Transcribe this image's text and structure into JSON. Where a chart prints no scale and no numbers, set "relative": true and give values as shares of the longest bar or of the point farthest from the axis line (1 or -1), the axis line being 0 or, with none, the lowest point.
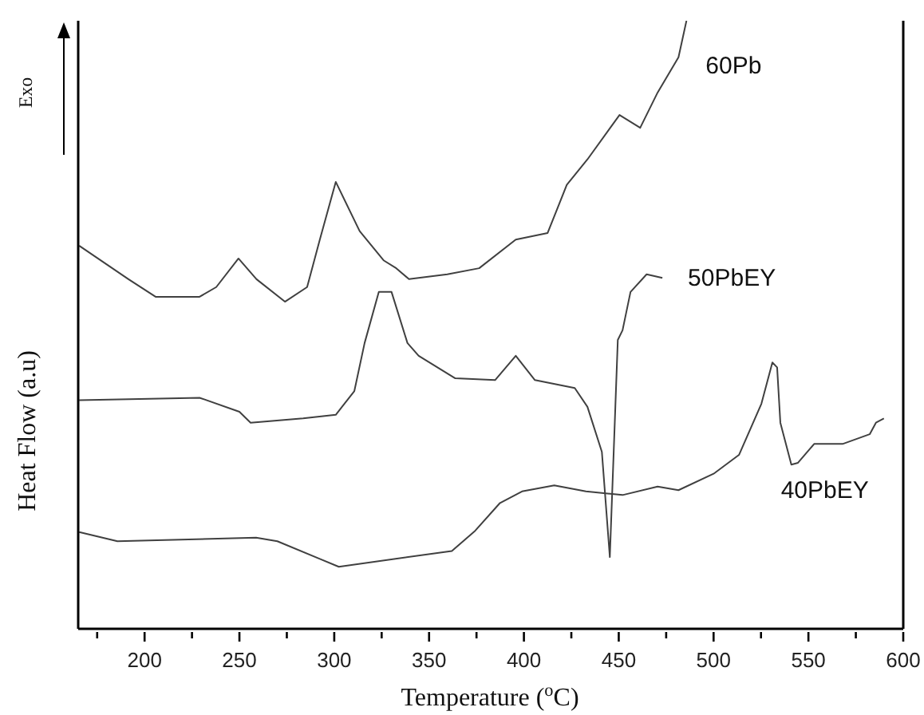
{
  "chart_data": {
    "type": "line",
    "relative": true,
    "xlabel": "Temperature ($^{o}$C)",
    "ylabel": "Heat Flow (a.u)",
    "annotations": [
      "Exo"
    ],
    "xlim": [
      165,
      600
    ],
    "xticks": [
      {
        "value": 175,
        "label": null
      },
      200,
      {
        "value": 225,
        "label": null
      },
      250,
      {
        "value": 275,
        "label": null
      },
      300,
      {
        "value": 325,
        "label": null
      },
      350,
      {
        "value": 375,
        "label": null
      },
      400,
      {
        "value": 425,
        "label": null
      },
      450,
      {
        "value": 475,
        "label": null
      },
      500,
      {
        "value": 525,
        "label": null
      },
      550,
      {
        "value": 575,
        "label": null
      },
      600
    ],
    "series": [
      {
        "name": "60Pb",
        "color": "#404040",
        "x": [
          165.5,
          191.5,
          205.8,
          229,
          237.8,
          249.5,
          259,
          274,
          285.7,
          292.4,
          300.8,
          313.4,
          326,
          332.7,
          339.4,
          359.6,
          376.4,
          395.7,
          412.5,
          422.6,
          433.5,
          450.4,
          461.3,
          470.5,
          481.5,
          485.7
        ],
        "values": [
          0.63,
          0.575,
          0.546,
          0.546,
          0.562,
          0.609,
          0.575,
          0.538,
          0.562,
          0.64,
          0.735,
          0.654,
          0.606,
          0.593,
          0.575,
          0.583,
          0.593,
          0.64,
          0.651,
          0.73,
          0.772,
          0.845,
          0.824,
          0.882,
          0.94,
          1
        ]
      },
      {
        "name": "50PbEY",
        "color": "#404040",
        "x": [
          165.5,
          229,
          250,
          255.9,
          283.6,
          300.8,
          310.6,
          316,
          323.5,
          330.2,
          338.6,
          344.5,
          363.8,
          384.8,
          395.7,
          405.8,
          426.8,
          433.5,
          441.1,
          445.3,
          449.5,
          452,
          456.2,
          464.7,
          473
        ],
        "values": [
          0.376,
          0.38,
          0.357,
          0.339,
          0.346,
          0.352,
          0.391,
          0.47,
          0.554,
          0.554,
          0.47,
          0.449,
          0.412,
          0.409,
          0.449,
          0.409,
          0.396,
          0.365,
          0.291,
          0.118,
          0.475,
          0.491,
          0.554,
          0.583,
          0.577
        ]
      },
      {
        "name": "40PbEY",
        "color": "#404040",
        "x": [
          165.5,
          185.7,
          258.8,
          270,
          292.4,
          302.4,
          362,
          373.9,
          387.4,
          399,
          416,
          432.7,
          452,
          470.5,
          481.5,
          500,
          513.4,
          525.2,
          531,
          533.5,
          535.2,
          541,
          544.5,
          553,
          568,
          582.3,
          585.6,
          589.8
        ],
        "values": [
          0.159,
          0.144,
          0.15,
          0.144,
          0.115,
          0.102,
          0.128,
          0.16,
          0.207,
          0.226,
          0.236,
          0.226,
          0.22,
          0.234,
          0.228,
          0.255,
          0.286,
          0.37,
          0.438,
          0.43,
          0.339,
          0.27,
          0.273,
          0.304,
          0.304,
          0.32,
          0.339,
          0.346
        ]
      }
    ]
  }
}
